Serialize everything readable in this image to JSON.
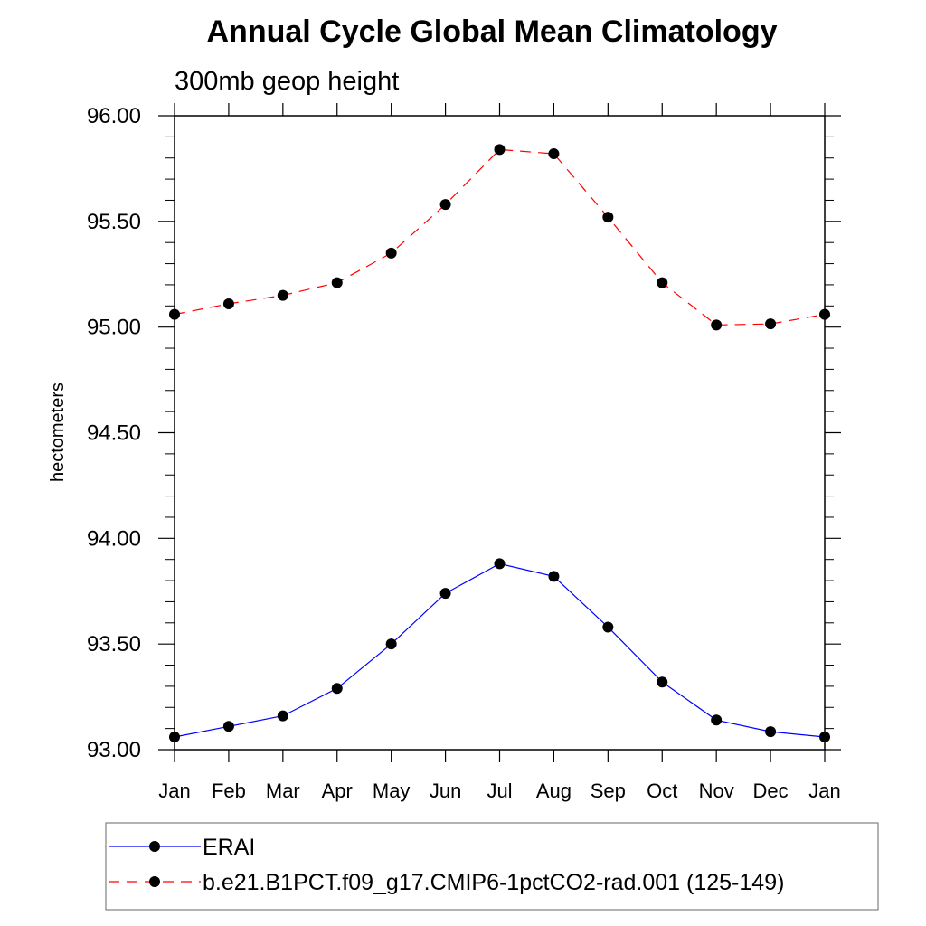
{
  "chart_data": {
    "type": "line",
    "title": "Annual Cycle Global Mean Climatology",
    "subtitle": "300mb geop height",
    "xlabel": "",
    "ylabel": "hectometers",
    "categories": [
      "Jan",
      "Feb",
      "Mar",
      "Apr",
      "May",
      "Jun",
      "Jul",
      "Aug",
      "Sep",
      "Oct",
      "Nov",
      "Dec",
      "Jan"
    ],
    "ylim": [
      93.0,
      96.0
    ],
    "yticks": [
      "93.00",
      "93.50",
      "94.00",
      "94.50",
      "95.00",
      "95.50",
      "96.00"
    ],
    "grid": false,
    "legend_position": "bottom",
    "series": [
      {
        "name": "ERAI",
        "color": "#0000ff",
        "line_style": "solid",
        "marker": "filled-circle",
        "values": [
          93.06,
          93.11,
          93.16,
          93.29,
          93.5,
          93.74,
          93.88,
          93.82,
          93.58,
          93.32,
          93.14,
          93.085,
          93.06
        ]
      },
      {
        "name": "b.e21.B1PCT.f09_g17.CMIP6-1pctCO2-rad.001 (125-149)",
        "color": "#ff0000",
        "line_style": "dashed",
        "marker": "filled-circle",
        "values": [
          95.06,
          95.11,
          95.15,
          95.21,
          95.35,
          95.58,
          95.84,
          95.82,
          95.52,
          95.21,
          95.01,
          95.015,
          95.06
        ]
      }
    ]
  }
}
